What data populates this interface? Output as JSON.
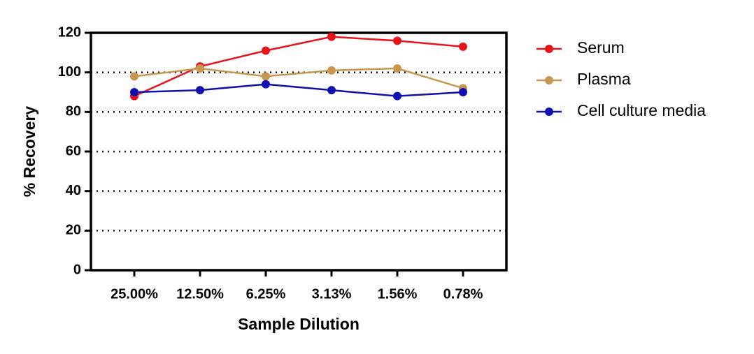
{
  "chart_data": {
    "type": "line",
    "xlabel": "Sample Dilution",
    "ylabel": "% Recovery",
    "categories": [
      "25.00%",
      "12.50%",
      "6.25%",
      "3.13%",
      "1.56%",
      "0.78%"
    ],
    "series": [
      {
        "name": "Serum",
        "color": "#e8141b",
        "values": [
          88,
          103,
          111,
          118,
          116,
          113
        ]
      },
      {
        "name": "Plasma",
        "color": "#c9964f",
        "values": [
          98,
          102,
          98,
          101,
          102,
          92
        ]
      },
      {
        "name": "Cell culture media",
        "color": "#1010b0",
        "values": [
          90,
          91,
          94,
          91,
          88,
          90
        ]
      }
    ],
    "ylim": [
      0,
      120
    ],
    "yticks": [
      0,
      20,
      40,
      60,
      80,
      100,
      120
    ],
    "grid": true,
    "legend": "right"
  }
}
